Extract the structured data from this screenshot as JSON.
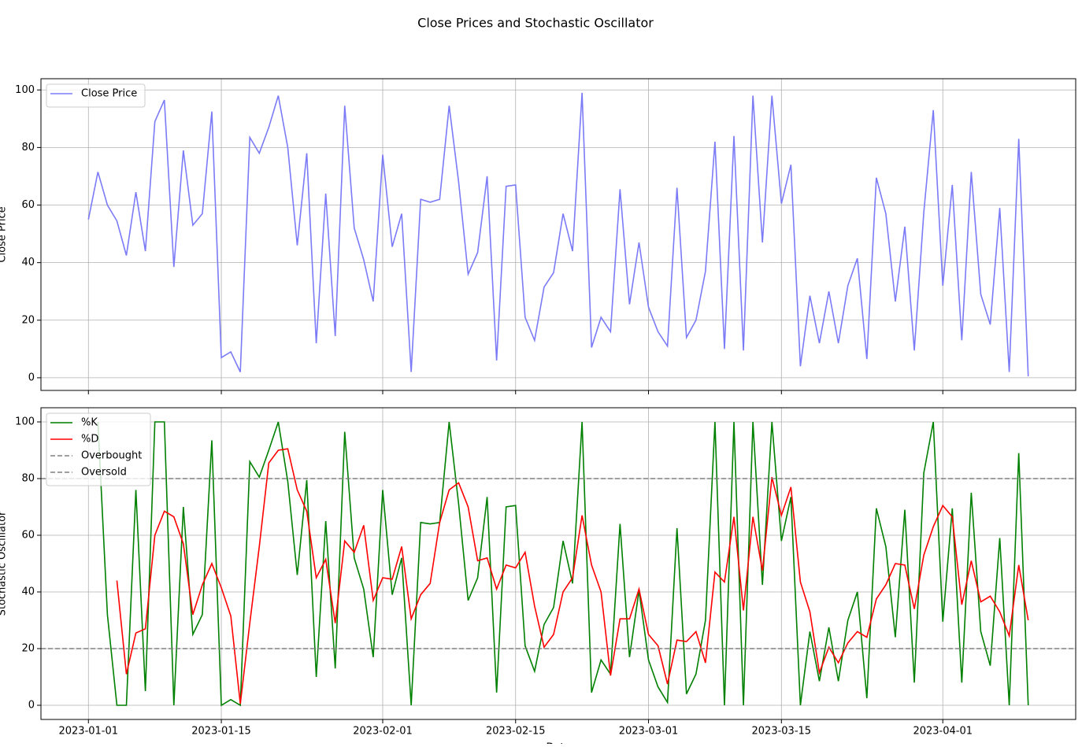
{
  "title": "Close Prices and Stochastic Oscillator",
  "chart_data": [
    {
      "type": "line",
      "ylabel": "Close Price",
      "grid": true,
      "legend": "upper left",
      "x": [
        "2023-01-01",
        "2023-01-02",
        "2023-01-03",
        "2023-01-04",
        "2023-01-05",
        "2023-01-06",
        "2023-01-07",
        "2023-01-08",
        "2023-01-09",
        "2023-01-10",
        "2023-01-11",
        "2023-01-12",
        "2023-01-13",
        "2023-01-14",
        "2023-01-15",
        "2023-01-16",
        "2023-01-17",
        "2023-01-18",
        "2023-01-19",
        "2023-01-20",
        "2023-01-21",
        "2023-01-22",
        "2023-01-23",
        "2023-01-24",
        "2023-01-25",
        "2023-01-26",
        "2023-01-27",
        "2023-01-28",
        "2023-01-29",
        "2023-01-30",
        "2023-01-31",
        "2023-02-01",
        "2023-02-02",
        "2023-02-03",
        "2023-02-04",
        "2023-02-05",
        "2023-02-06",
        "2023-02-07",
        "2023-02-08",
        "2023-02-09",
        "2023-02-10",
        "2023-02-11",
        "2023-02-12",
        "2023-02-13",
        "2023-02-14",
        "2023-02-15",
        "2023-02-16",
        "2023-02-17",
        "2023-02-18",
        "2023-02-19",
        "2023-02-20",
        "2023-02-21",
        "2023-02-22",
        "2023-02-23",
        "2023-02-24",
        "2023-02-25",
        "2023-02-26",
        "2023-02-27",
        "2023-02-28",
        "2023-03-01",
        "2023-03-02",
        "2023-03-03",
        "2023-03-04",
        "2023-03-05",
        "2023-03-06",
        "2023-03-07",
        "2023-03-08",
        "2023-03-09",
        "2023-03-10",
        "2023-03-11",
        "2023-03-12",
        "2023-03-13",
        "2023-03-14",
        "2023-03-15",
        "2023-03-16",
        "2023-03-17",
        "2023-03-18",
        "2023-03-19",
        "2023-03-20",
        "2023-03-21",
        "2023-03-22",
        "2023-03-23",
        "2023-03-24",
        "2023-03-25",
        "2023-03-26",
        "2023-03-27",
        "2023-03-28",
        "2023-03-29",
        "2023-03-30",
        "2023-03-31",
        "2023-04-01",
        "2023-04-02",
        "2023-04-03",
        "2023-04-04",
        "2023-04-05",
        "2023-04-06",
        "2023-04-07",
        "2023-04-08",
        "2023-04-09",
        "2023-04-10"
      ],
      "series": [
        {
          "name": "Close Price",
          "color": "#7b7bf7",
          "values": [
            55,
            71.5,
            60,
            54.5,
            42.5,
            64.5,
            44,
            89,
            96.5,
            38.5,
            79,
            53,
            57,
            92.5,
            7,
            9,
            2,
            83.5,
            78,
            87,
            98,
            80,
            46,
            78,
            12,
            64,
            14.5,
            94.5,
            52,
            41,
            26.5,
            77.5,
            45.5,
            57,
            2,
            62,
            61,
            62,
            94.5,
            68,
            36,
            43.5,
            70,
            6,
            66.5,
            67,
            21,
            13,
            31.5,
            36.5,
            57,
            44,
            99,
            10.5,
            21,
            16,
            65.5,
            25.5,
            47,
            24.5,
            16,
            11,
            66,
            14,
            20,
            37,
            82,
            10,
            84,
            9.5,
            98,
            47,
            98,
            60.5,
            74,
            4,
            28.5,
            12,
            30,
            12,
            32,
            41.5,
            6.5,
            69.5,
            57,
            26.5,
            52.5,
            9.5,
            57.5,
            93,
            32,
            67,
            13,
            71.5,
            29,
            18.5,
            59,
            2,
            83,
            0.5
          ]
        }
      ],
      "xlim": [
        "2022-12-27",
        "2023-04-15"
      ],
      "ylim": [
        -4.4,
        103.9
      ],
      "yticks": [
        0,
        20,
        40,
        60,
        80,
        100
      ]
    },
    {
      "type": "line",
      "ylabel": "Stochastic Oscillator",
      "xlabel": "Date",
      "grid": true,
      "legend": "upper left",
      "x": [
        "2023-01-01",
        "2023-01-02",
        "2023-01-03",
        "2023-01-04",
        "2023-01-05",
        "2023-01-06",
        "2023-01-07",
        "2023-01-08",
        "2023-01-09",
        "2023-01-10",
        "2023-01-11",
        "2023-01-12",
        "2023-01-13",
        "2023-01-14",
        "2023-01-15",
        "2023-01-16",
        "2023-01-17",
        "2023-01-18",
        "2023-01-19",
        "2023-01-20",
        "2023-01-21",
        "2023-01-22",
        "2023-01-23",
        "2023-01-24",
        "2023-01-25",
        "2023-01-26",
        "2023-01-27",
        "2023-01-28",
        "2023-01-29",
        "2023-01-30",
        "2023-01-31",
        "2023-02-01",
        "2023-02-02",
        "2023-02-03",
        "2023-02-04",
        "2023-02-05",
        "2023-02-06",
        "2023-02-07",
        "2023-02-08",
        "2023-02-09",
        "2023-02-10",
        "2023-02-11",
        "2023-02-12",
        "2023-02-13",
        "2023-02-14",
        "2023-02-15",
        "2023-02-16",
        "2023-02-17",
        "2023-02-18",
        "2023-02-19",
        "2023-02-20",
        "2023-02-21",
        "2023-02-22",
        "2023-02-23",
        "2023-02-24",
        "2023-02-25",
        "2023-02-26",
        "2023-02-27",
        "2023-02-28",
        "2023-03-01",
        "2023-03-02",
        "2023-03-03",
        "2023-03-04",
        "2023-03-05",
        "2023-03-06",
        "2023-03-07",
        "2023-03-08",
        "2023-03-09",
        "2023-03-10",
        "2023-03-11",
        "2023-03-12",
        "2023-03-13",
        "2023-03-14",
        "2023-03-15",
        "2023-03-16",
        "2023-03-17",
        "2023-03-18",
        "2023-03-19",
        "2023-03-20",
        "2023-03-21",
        "2023-03-22",
        "2023-03-23",
        "2023-03-24",
        "2023-03-25",
        "2023-03-26",
        "2023-03-27",
        "2023-03-28",
        "2023-03-29",
        "2023-03-30",
        "2023-03-31",
        "2023-04-01",
        "2023-04-02",
        "2023-04-03",
        "2023-04-04",
        "2023-04-05",
        "2023-04-06",
        "2023-04-07",
        "2023-04-08",
        "2023-04-09",
        "2023-04-10"
      ],
      "series": [
        {
          "name": "%K",
          "color": "#008000",
          "values": [
            null,
            100,
            32,
            0,
            0,
            76,
            5,
            100,
            100,
            0,
            70,
            25,
            32,
            93.5,
            0,
            2,
            0,
            86,
            80.5,
            90,
            100,
            79,
            46,
            79.5,
            10,
            65,
            13,
            96.5,
            52,
            41,
            17,
            76,
            39,
            52,
            0,
            64.5,
            64,
            64.5,
            100,
            71,
            37,
            45,
            73.5,
            4.5,
            70,
            70.5,
            21,
            12,
            28.5,
            34.5,
            58,
            43,
            100,
            4.5,
            16,
            11,
            64,
            17,
            40.5,
            16,
            6.5,
            1,
            62.5,
            4,
            11,
            30,
            100,
            0,
            100,
            0,
            100,
            42.5,
            100,
            58,
            73.5,
            0,
            26,
            8.5,
            27.5,
            8.5,
            30,
            40,
            2.5,
            69.5,
            56,
            24,
            69,
            8,
            82,
            100,
            29.5,
            69.5,
            8,
            75,
            26,
            14,
            59,
            0,
            89,
            0
          ]
        },
        {
          "name": "%D",
          "color": "#ff0000",
          "values": [
            null,
            null,
            null,
            44,
            11,
            25.5,
            27,
            60,
            68.5,
            66.5,
            57,
            32,
            42.5,
            50,
            41.5,
            31.5,
            0.5,
            29,
            56,
            85.5,
            90,
            90.5,
            76,
            68.5,
            45,
            51.5,
            29,
            58,
            54,
            63.5,
            37,
            45,
            44.5,
            56,
            30.5,
            39,
            43,
            64.5,
            76,
            78.5,
            70,
            51,
            52,
            41,
            49.5,
            48.5,
            54,
            35,
            20.5,
            25,
            40,
            45,
            67,
            49.5,
            40,
            10.5,
            30.5,
            30.5,
            41,
            25,
            21,
            7.5,
            23,
            22.5,
            26,
            15,
            47,
            43.5,
            66.5,
            33.5,
            66.5,
            47.5,
            80.5,
            67,
            77,
            43.5,
            33,
            11.5,
            20.5,
            15,
            22,
            26,
            24,
            37.5,
            42.5,
            50,
            49.5,
            34,
            53,
            63,
            70.5,
            66.5,
            35.5,
            51,
            36.5,
            38.5,
            33,
            24.5,
            49.5,
            30
          ]
        }
      ],
      "hlines": [
        {
          "name": "Overbought",
          "value": 80,
          "color": "#808080"
        },
        {
          "name": "Oversold",
          "value": 20,
          "color": "#808080"
        }
      ],
      "xlim": [
        "2022-12-27",
        "2023-04-15"
      ],
      "ylim": [
        -5,
        105
      ],
      "yticks": [
        0,
        20,
        40,
        60,
        80,
        100
      ],
      "xticks": [
        "2023-01-01",
        "2023-01-15",
        "2023-02-01",
        "2023-02-15",
        "2023-03-01",
        "2023-03-15",
        "2023-04-01"
      ]
    }
  ]
}
